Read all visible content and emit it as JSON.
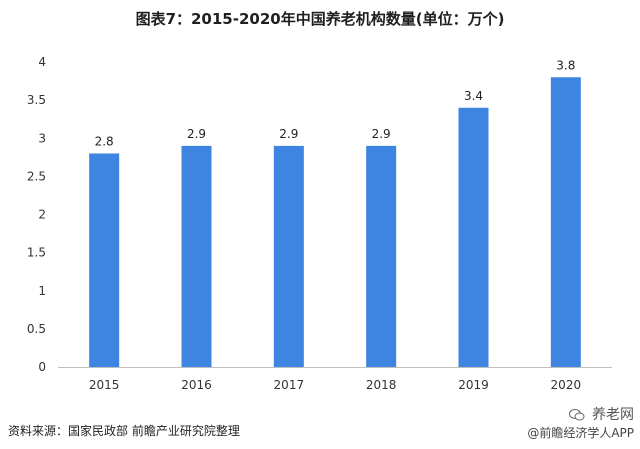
{
  "chart_data": {
    "type": "bar",
    "title": "图表7：2015-2020年中国养老机构数量(单位：万个)",
    "categories": [
      "2015",
      "2016",
      "2017",
      "2018",
      "2019",
      "2020"
    ],
    "values": [
      2.8,
      2.9,
      2.9,
      2.9,
      3.4,
      3.8
    ],
    "data_labels": [
      "2.8",
      "2.9",
      "2.9",
      "2.9",
      "3.4",
      "3.8"
    ],
    "yticks": [
      "0",
      "0.5",
      "1",
      "1.5",
      "2",
      "2.5",
      "3",
      "3.5",
      "4"
    ],
    "ylim": [
      0,
      4
    ],
    "xlabel": "",
    "ylabel": "",
    "grid": false,
    "legend": "none",
    "bar_color": "#3d85e0"
  },
  "footer": {
    "source": "资料来源：国家民政部 前瞻产业研究院整理",
    "signature": "@前瞻经济学人APP",
    "wechat_name": "养老网"
  }
}
